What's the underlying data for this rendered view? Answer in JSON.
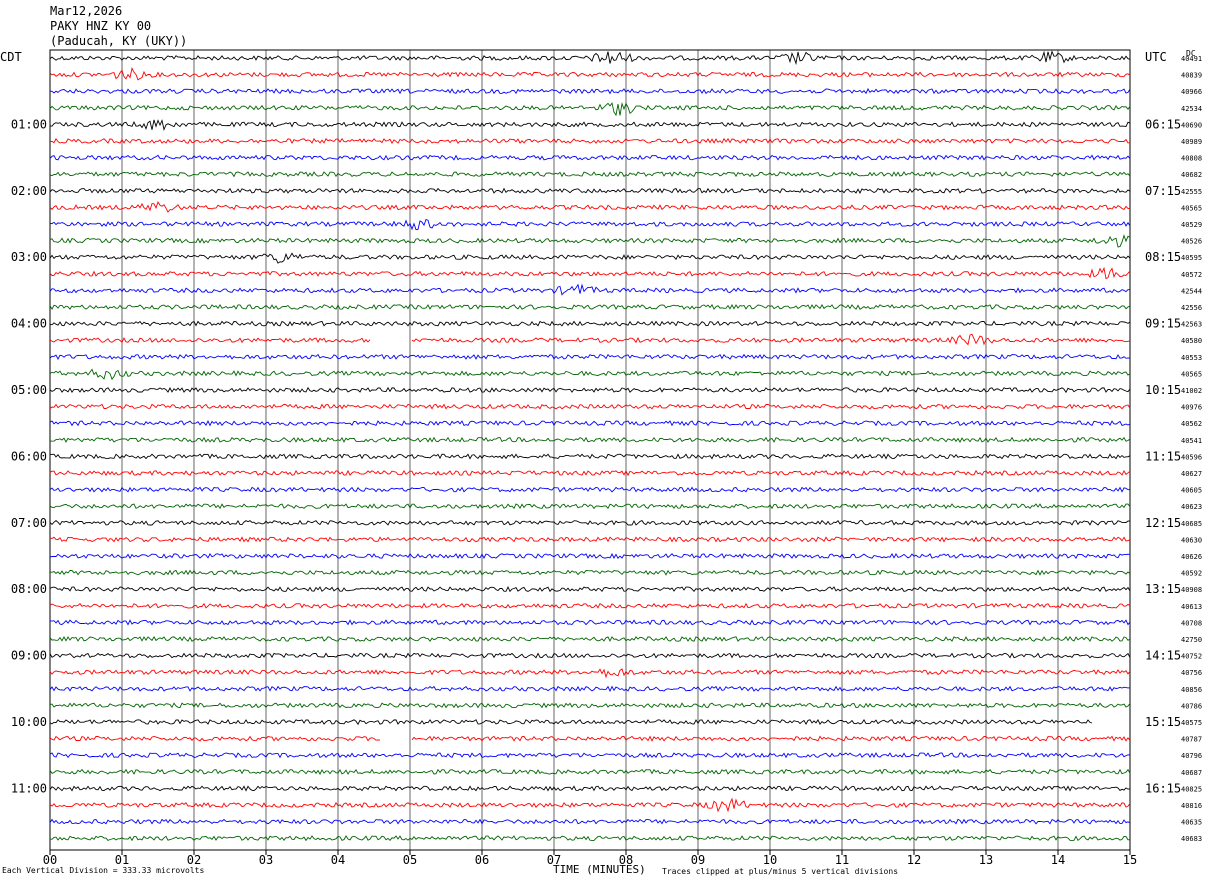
{
  "header": {
    "date": "Mar12,2026",
    "station": "PAKY HNZ KY 00",
    "location": "(Paducah, KY (UKY))"
  },
  "labels": {
    "left_tz": "CDT",
    "right_tz": "UTC",
    "dc": "DC"
  },
  "footer": {
    "left": "Each Vertical Division =  333.33 microvolts",
    "xlabel": "TIME (MINUTES)",
    "right": "Traces clipped at plus/minus 5 vertical divisions"
  },
  "chart_data": {
    "type": "line",
    "title": "PAKY HNZ KY 00",
    "xlabel": "TIME (MINUTES)",
    "ylabel": "",
    "xlim": [
      0,
      15
    ],
    "x_ticks": [
      "00",
      "01",
      "02",
      "03",
      "04",
      "05",
      "06",
      "07",
      "08",
      "09",
      "10",
      "11",
      "12",
      "13",
      "14",
      "15"
    ],
    "trace_colors": [
      "#000000",
      "#ff0000",
      "#0000ff",
      "#006400"
    ],
    "left_hour_labels": [
      "01:00",
      "02:00",
      "03:00",
      "04:00",
      "05:00",
      "06:00",
      "07:00",
      "08:00",
      "09:00",
      "10:00",
      "11:00"
    ],
    "right_hour_labels": [
      "06:15",
      "07:15",
      "08:15",
      "09:15",
      "10:15",
      "11:15",
      "12:15",
      "13:15",
      "14:15",
      "15:15",
      "16:15"
    ],
    "dc_offsets": [
      "40491",
      "40839",
      "40966",
      "42534",
      "40690",
      "40989",
      "40808",
      "40682",
      "42555",
      "40565",
      "40529",
      "40526",
      "40595",
      "40572",
      "42544",
      "42556",
      "42563",
      "40580",
      "40553",
      "40565",
      "41002",
      "40976",
      "40562",
      "40541",
      "40596",
      "40627",
      "40605",
      "40623",
      "40685",
      "40630",
      "40626",
      "40592",
      "40908",
      "40613",
      "40708",
      "42750",
      "40752",
      "40756",
      "40856",
      "40786",
      "40575",
      "40787",
      "40796",
      "40687",
      "40825",
      "40816",
      "40635",
      "40683"
    ],
    "gaps": [
      {
        "trace": 17,
        "from_min": 4.45,
        "to_min": 5.0
      },
      {
        "trace": 41,
        "from_min": 4.6,
        "to_min": 5.0
      },
      {
        "trace": 40,
        "from_min": 14.5,
        "to_min": 15.0
      }
    ],
    "events": [
      {
        "trace": 0,
        "at_min": 7.8,
        "amp": 3
      },
      {
        "trace": 0,
        "at_min": 10.4,
        "amp": 2
      },
      {
        "trace": 0,
        "at_min": 13.9,
        "amp": 2
      },
      {
        "trace": 1,
        "at_min": 1.1,
        "amp": 2
      },
      {
        "trace": 3,
        "at_min": 7.9,
        "amp": 2.5
      },
      {
        "trace": 4,
        "at_min": 1.5,
        "amp": 2
      },
      {
        "trace": 9,
        "at_min": 1.5,
        "amp": 2
      },
      {
        "trace": 10,
        "at_min": 5.1,
        "amp": 2
      },
      {
        "trace": 11,
        "at_min": 14.8,
        "amp": 2
      },
      {
        "trace": 12,
        "at_min": 3.2,
        "amp": 2
      },
      {
        "trace": 13,
        "at_min": 14.7,
        "amp": 2
      },
      {
        "trace": 14,
        "at_min": 7.3,
        "amp": 2
      },
      {
        "trace": 17,
        "at_min": 12.8,
        "amp": 2
      },
      {
        "trace": 19,
        "at_min": 0.8,
        "amp": 2
      },
      {
        "trace": 37,
        "at_min": 7.8,
        "amp": 1.5
      },
      {
        "trace": 45,
        "at_min": 9.4,
        "amp": 2.5
      }
    ]
  }
}
